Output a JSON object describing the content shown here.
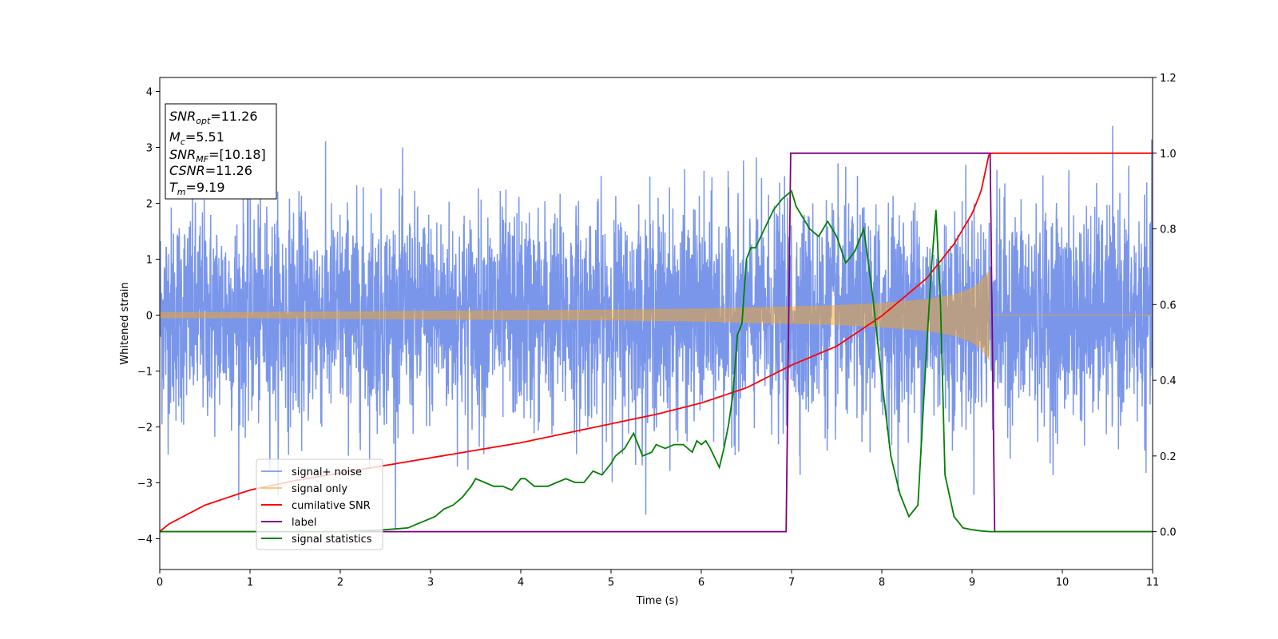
{
  "chart_data": {
    "type": "line",
    "xlabel": "Time (s)",
    "ylabel": "Whitened strain",
    "xlim": [
      0,
      11
    ],
    "ylim_left": [
      -4.55,
      4.25
    ],
    "ylim_right": [
      -0.1,
      1.2
    ],
    "xticks": [
      0,
      1,
      2,
      3,
      4,
      5,
      6,
      7,
      8,
      9,
      10,
      11
    ],
    "yticks_left": [
      -4,
      -3,
      -2,
      -1,
      0,
      1,
      2,
      3,
      4
    ],
    "yticks_right": [
      "0.0",
      "0.2",
      "0.4",
      "0.6",
      "0.8",
      "1.0",
      "1.2"
    ],
    "legend": {
      "placement": "lower-left",
      "entries": [
        "signal+ noise",
        "signal only",
        "cumilative SNR",
        "label",
        "signal statistics"
      ]
    },
    "annotation": {
      "lines": [
        {
          "base": "SNR",
          "sub": "opt",
          "value": "=11.26"
        },
        {
          "base": "M",
          "sub": "c",
          "value": "=5.51"
        },
        {
          "base": "SNR",
          "sub": "MF",
          "value": "=[10.18]"
        },
        {
          "base": "CSNR",
          "sub": "",
          "value": "=11.26"
        },
        {
          "base": "T",
          "sub": "m",
          "value": "=9.19"
        }
      ]
    },
    "series": [
      {
        "name": "signal+ noise",
        "axis": "left",
        "color": "#4169e1",
        "kind": "noise",
        "std": 0.95,
        "sample_rate": 400,
        "x_range": [
          0,
          11
        ]
      },
      {
        "name": "signal only",
        "axis": "left",
        "color": "#f5a623",
        "kind": "chirp_envelope",
        "merger_time": 9.19,
        "x": [
          0,
          1,
          2,
          3,
          4,
          5,
          6,
          7,
          7.5,
          8,
          8.5,
          8.8,
          9.0,
          9.1,
          9.19
        ],
        "envelope": [
          0.05,
          0.05,
          0.06,
          0.07,
          0.08,
          0.09,
          0.11,
          0.15,
          0.17,
          0.21,
          0.28,
          0.36,
          0.48,
          0.6,
          0.8
        ]
      },
      {
        "name": "cumilative SNR",
        "axis": "right",
        "color": "#ff0000",
        "x": [
          0,
          0.1,
          0.5,
          1,
          1.5,
          2,
          2.5,
          3,
          3.5,
          4,
          4.5,
          5,
          5.5,
          6,
          6.5,
          7,
          7.5,
          8,
          8.5,
          8.8,
          9.0,
          9.1,
          9.19,
          9.2,
          10,
          11
        ],
        "values": [
          0.0,
          0.02,
          0.07,
          0.11,
          0.135,
          0.155,
          0.175,
          0.195,
          0.215,
          0.235,
          0.26,
          0.285,
          0.31,
          0.34,
          0.38,
          0.44,
          0.49,
          0.57,
          0.67,
          0.76,
          0.84,
          0.9,
          1.0,
          1.0,
          1.0,
          1.0
        ]
      },
      {
        "name": "label",
        "axis": "right",
        "color": "#800080",
        "x": [
          0,
          6.94,
          6.99,
          9.2,
          9.25,
          11
        ],
        "values": [
          0,
          0,
          1,
          1,
          0,
          0
        ]
      },
      {
        "name": "signal statistics",
        "axis": "right",
        "color": "#008000",
        "x": [
          0,
          0.5,
          1,
          1.5,
          2,
          2.5,
          2.75,
          2.85,
          2.95,
          3.05,
          3.15,
          3.25,
          3.35,
          3.45,
          3.5,
          3.6,
          3.7,
          3.8,
          3.9,
          4.0,
          4.05,
          4.15,
          4.3,
          4.4,
          4.5,
          4.6,
          4.7,
          4.8,
          4.9,
          5.0,
          5.05,
          5.15,
          5.25,
          5.35,
          5.45,
          5.5,
          5.6,
          5.7,
          5.8,
          5.9,
          5.95,
          6.0,
          6.05,
          6.1,
          6.2,
          6.25,
          6.3,
          6.35,
          6.4,
          6.45,
          6.5,
          6.55,
          6.6,
          6.7,
          6.8,
          6.9,
          7.0,
          7.05,
          7.1,
          7.2,
          7.3,
          7.4,
          7.5,
          7.6,
          7.7,
          7.8,
          7.9,
          8.0,
          8.1,
          8.2,
          8.3,
          8.4,
          8.5,
          8.55,
          8.6,
          8.65,
          8.7,
          8.8,
          8.9,
          9.0,
          9.1,
          9.2,
          9.3,
          10,
          11
        ],
        "values": [
          0,
          0,
          0,
          0,
          0,
          0.005,
          0.01,
          0.02,
          0.03,
          0.04,
          0.06,
          0.07,
          0.09,
          0.12,
          0.14,
          0.13,
          0.12,
          0.12,
          0.11,
          0.14,
          0.14,
          0.12,
          0.12,
          0.13,
          0.14,
          0.13,
          0.13,
          0.16,
          0.15,
          0.18,
          0.2,
          0.22,
          0.26,
          0.2,
          0.21,
          0.23,
          0.22,
          0.23,
          0.23,
          0.21,
          0.24,
          0.23,
          0.24,
          0.22,
          0.17,
          0.22,
          0.28,
          0.36,
          0.52,
          0.55,
          0.72,
          0.75,
          0.75,
          0.8,
          0.85,
          0.88,
          0.9,
          0.86,
          0.84,
          0.8,
          0.78,
          0.82,
          0.78,
          0.71,
          0.74,
          0.8,
          0.62,
          0.4,
          0.2,
          0.1,
          0.04,
          0.07,
          0.5,
          0.7,
          0.85,
          0.6,
          0.15,
          0.04,
          0.01,
          0.005,
          0.002,
          0.0,
          0.0,
          0.0,
          0.0
        ]
      }
    ]
  }
}
